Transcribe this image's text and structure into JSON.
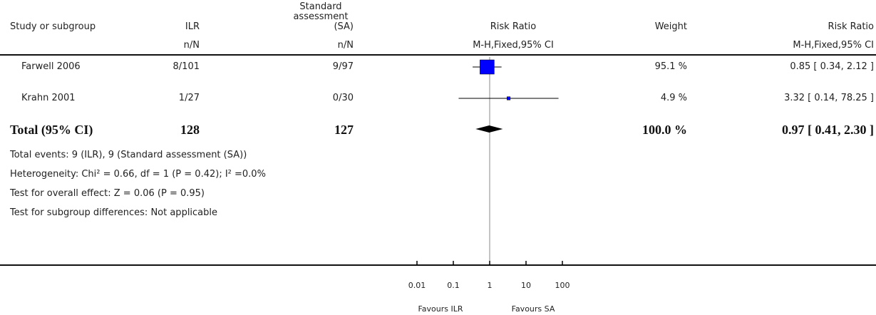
{
  "header": {
    "col_study": "Study or subgroup",
    "col_ilr": "ILR",
    "col_sa_line1": "Standard",
    "col_sa_line2": "assessment",
    "col_sa_line3": "(SA)",
    "col_rr": "Risk Ratio",
    "col_weight": "Weight",
    "col_rr2": "Risk Ratio",
    "sub_ilr": "n/N",
    "sub_sa": "n/N",
    "sub_rr": "M-H,Fixed,95% CI",
    "sub_rr2": "M-H,Fixed,95% CI"
  },
  "studies": [
    {
      "name": "Farwell 2006",
      "ilr": "8/101",
      "sa": "9/97",
      "weight": "95.1 %",
      "ci_text": "0.85 [ 0.34, 2.12 ]"
    },
    {
      "name": "Krahn 2001",
      "ilr": "1/27",
      "sa": "0/30",
      "weight": "4.9 %",
      "ci_text": "3.32 [ 0.14, 78.25 ]"
    }
  ],
  "total": {
    "label": "Total (95% CI)",
    "ilr": "128",
    "sa": "127",
    "weight": "100.0 %",
    "ci_text": "0.97 [ 0.41, 2.30 ]"
  },
  "notes": [
    "Total events: 9 (ILR), 9 (Standard assessment (SA))",
    "Heterogeneity: Chi² = 0.66, df = 1 (P = 0.42); I² =0.0%",
    "Test for overall effect: Z = 0.06 (P = 0.95)",
    "Test for subgroup differences: Not applicable"
  ],
  "axis": {
    "ticks": [
      "0.01",
      "0.1",
      "1",
      "10",
      "100"
    ],
    "favours_left": "Favours ILR",
    "favours_right": "Favours SA"
  },
  "colors": {
    "box": "#0000ff",
    "line": "#000000"
  },
  "chart_data": {
    "type": "forest",
    "scale": "log",
    "xlim": [
      0.01,
      100
    ],
    "null_value": 1,
    "studies": [
      {
        "name": "Farwell 2006",
        "rr": 0.85,
        "ci": [
          0.34,
          2.12
        ],
        "weight": 95.1
      },
      {
        "name": "Krahn 2001",
        "rr": 3.32,
        "ci": [
          0.14,
          78.25
        ],
        "weight": 4.9
      }
    ],
    "pooled": {
      "rr": 0.97,
      "ci": [
        0.41,
        2.3
      ]
    }
  }
}
